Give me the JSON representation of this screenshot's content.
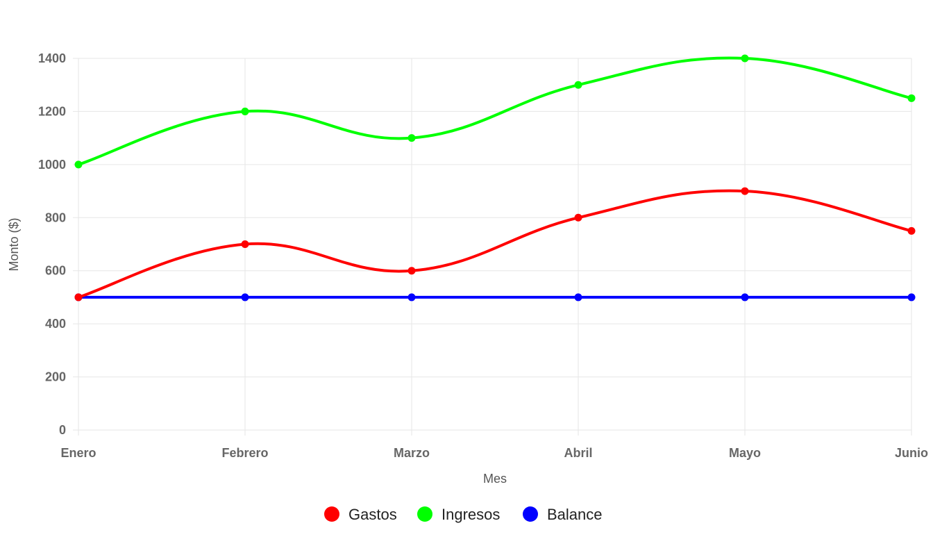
{
  "chart_data": {
    "type": "line",
    "title": "",
    "xlabel": "Mes",
    "ylabel": "Monto ($)",
    "categories": [
      "Enero",
      "Febrero",
      "Marzo",
      "Abril",
      "Mayo",
      "Junio"
    ],
    "ylim": [
      0,
      1400
    ],
    "yticks": [
      0,
      200,
      400,
      600,
      800,
      1000,
      1200,
      1400
    ],
    "grid": true,
    "legend_position": "bottom",
    "series": [
      {
        "name": "Gastos",
        "color": "#ff0000",
        "values": [
          500,
          700,
          600,
          800,
          900,
          750
        ]
      },
      {
        "name": "Ingresos",
        "color": "#00ff00",
        "values": [
          1000,
          1200,
          1100,
          1300,
          1400,
          1250
        ]
      },
      {
        "name": "Balance",
        "color": "#0000ff",
        "values": [
          500,
          500,
          500,
          500,
          500,
          500
        ]
      }
    ]
  }
}
